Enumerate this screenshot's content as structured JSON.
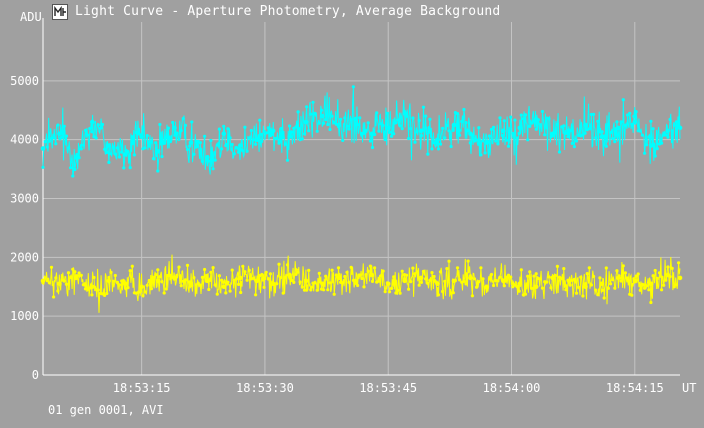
{
  "window": {
    "title": "Light Curve - Aperture Photometry, Average Background",
    "icon": "light-curve-app-icon"
  },
  "footer": {
    "text": "01 gen 0001, AVI"
  },
  "colors": {
    "background": "#a0a0a0",
    "grid": "#c4c4c4",
    "axis": "#ffffff",
    "text": "#ffffff",
    "series_upper": "#00ffff",
    "series_lower": "#ffff00"
  },
  "chart_data": {
    "type": "line",
    "markers": true,
    "grid": true,
    "ylabel": "ADU",
    "xlabel": "UT",
    "ylim": [
      0,
      6000
    ],
    "xlim_seconds": [
      3,
      80.5
    ],
    "yticks": [
      {
        "value": 0,
        "label": "0"
      },
      {
        "value": 1000,
        "label": "1000"
      },
      {
        "value": 2000,
        "label": "2000"
      },
      {
        "value": 3000,
        "label": "3000"
      },
      {
        "value": 4000,
        "label": "4000"
      },
      {
        "value": 5000,
        "label": "5000"
      }
    ],
    "xticks": [
      {
        "value": 15,
        "label": "18:53:15"
      },
      {
        "value": 30,
        "label": "18:53:30"
      },
      {
        "value": 45,
        "label": "18:53:45"
      },
      {
        "value": 60,
        "label": "18:54:00"
      },
      {
        "value": 75,
        "label": "18:54:15"
      }
    ],
    "series": [
      {
        "color": "#00ffff",
        "t": [
          3,
          5,
          7,
          9,
          11,
          13,
          15,
          17,
          19,
          21,
          23,
          25,
          27,
          29,
          31,
          33,
          35,
          37,
          39,
          41,
          43,
          45,
          47,
          49,
          51,
          53,
          55,
          57,
          59,
          61,
          63,
          65,
          67,
          69,
          71,
          73,
          75,
          77,
          79,
          80.5
        ],
        "values": [
          3850,
          4100,
          3700,
          4300,
          3900,
          3750,
          4050,
          3800,
          4200,
          3950,
          3700,
          4100,
          3900,
          4000,
          4150,
          4050,
          4300,
          4400,
          4250,
          4350,
          4100,
          4200,
          4450,
          4150,
          4000,
          4250,
          4100,
          3950,
          4150,
          4200,
          4350,
          4100,
          4150,
          4250,
          4050,
          4200,
          4300,
          3900,
          4150,
          4200
        ],
        "noise": 520
      },
      {
        "color": "#ffff00",
        "t": [
          3,
          5,
          7,
          9,
          11,
          13,
          15,
          17,
          19,
          21,
          23,
          25,
          27,
          29,
          31,
          33,
          35,
          37,
          39,
          41,
          43,
          45,
          47,
          49,
          51,
          53,
          55,
          57,
          59,
          61,
          63,
          65,
          67,
          69,
          71,
          73,
          75,
          77,
          79,
          80.5
        ],
        "values": [
          1600,
          1550,
          1650,
          1500,
          1600,
          1550,
          1500,
          1600,
          1650,
          1550,
          1600,
          1500,
          1650,
          1600,
          1550,
          1700,
          1600,
          1550,
          1650,
          1600,
          1700,
          1550,
          1600,
          1650,
          1550,
          1600,
          1650,
          1500,
          1600,
          1550,
          1500,
          1650,
          1600,
          1500,
          1550,
          1650,
          1600,
          1550,
          1700,
          1650
        ],
        "noise": 380
      }
    ]
  }
}
